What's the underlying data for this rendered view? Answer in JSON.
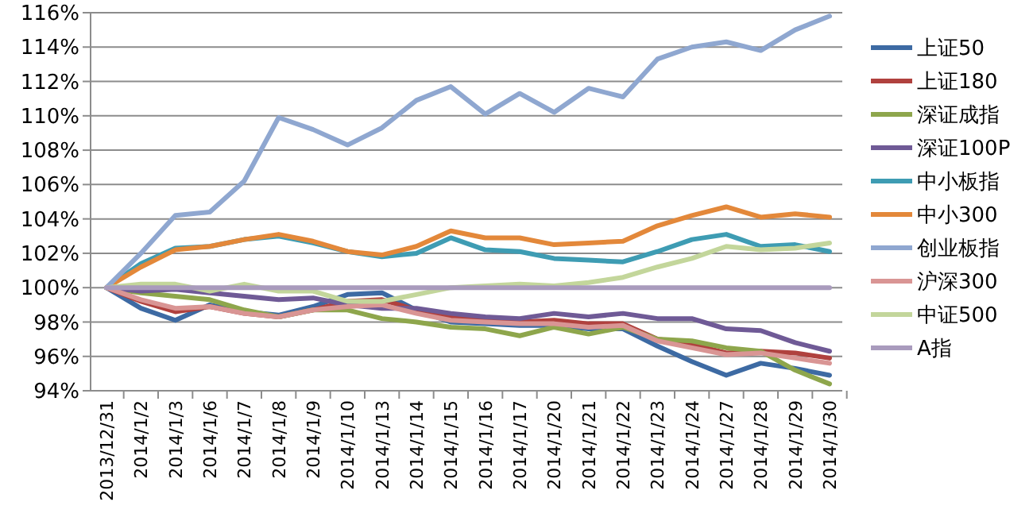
{
  "chart_data": {
    "type": "line",
    "categories": [
      "2013/12/31",
      "2014/1/2",
      "2014/1/3",
      "2014/1/6",
      "2014/1/7",
      "2014/1/8",
      "2014/1/9",
      "2014/1/10",
      "2014/1/13",
      "2014/1/14",
      "2014/1/15",
      "2014/1/16",
      "2014/1/17",
      "2014/1/20",
      "2014/1/21",
      "2014/1/22",
      "2014/1/23",
      "2014/1/24",
      "2014/1/27",
      "2014/1/28",
      "2014/1/29",
      "2014/1/30"
    ],
    "ylim": [
      94,
      116
    ],
    "yticks": [
      {
        "value": 94,
        "label": "94%"
      },
      {
        "value": 96,
        "label": "96%"
      },
      {
        "value": 98,
        "label": "98%"
      },
      {
        "value": 100,
        "label": "100%"
      },
      {
        "value": 102,
        "label": "102%"
      },
      {
        "value": 104,
        "label": "104%"
      },
      {
        "value": 106,
        "label": "106%"
      },
      {
        "value": 108,
        "label": "108%"
      },
      {
        "value": 110,
        "label": "110%"
      },
      {
        "value": 112,
        "label": "112%"
      },
      {
        "value": 114,
        "label": "114%"
      },
      {
        "value": 116,
        "label": "116%"
      }
    ],
    "grid": "y",
    "legend": "right",
    "marker": "none",
    "line_style": "solid",
    "series": [
      {
        "name": "上证50",
        "color": "#3d6aa3",
        "values": [
          100,
          98.8,
          98.1,
          99.0,
          98.6,
          98.4,
          98.9,
          99.6,
          99.7,
          98.7,
          98.0,
          97.9,
          97.8,
          97.8,
          97.6,
          97.6,
          96.6,
          95.7,
          94.9,
          95.6,
          95.3,
          94.9
        ]
      },
      {
        "name": "上证180",
        "color": "#b0413e",
        "values": [
          100,
          99.2,
          98.6,
          98.9,
          98.5,
          98.3,
          98.7,
          99.2,
          99.3,
          98.7,
          98.3,
          98.2,
          98.0,
          98.1,
          97.9,
          97.9,
          97.0,
          96.7,
          96.2,
          96.3,
          96.2,
          95.9
        ]
      },
      {
        "name": "深证成指",
        "color": "#8ea64c",
        "values": [
          100,
          99.7,
          99.5,
          99.3,
          98.7,
          98.3,
          98.7,
          98.7,
          98.2,
          98.0,
          97.7,
          97.6,
          97.2,
          97.7,
          97.3,
          97.7,
          97.0,
          96.9,
          96.5,
          96.3,
          95.2,
          94.4
        ]
      },
      {
        "name": "深证100P",
        "color": "#6f5a96",
        "values": [
          100,
          99.8,
          99.9,
          99.7,
          99.5,
          99.3,
          99.4,
          99.0,
          98.8,
          98.8,
          98.5,
          98.3,
          98.2,
          98.5,
          98.3,
          98.5,
          98.2,
          98.2,
          97.6,
          97.5,
          96.8,
          96.3
        ]
      },
      {
        "name": "中小板指",
        "color": "#3e9cb3",
        "values": [
          100,
          101.4,
          102.3,
          102.4,
          102.8,
          103.0,
          102.6,
          102.1,
          101.8,
          102.0,
          102.9,
          102.2,
          102.1,
          101.7,
          101.6,
          101.5,
          102.1,
          102.8,
          103.1,
          102.4,
          102.5,
          102.1
        ]
      },
      {
        "name": "中小300",
        "color": "#e3883a",
        "values": [
          100,
          101.2,
          102.2,
          102.4,
          102.8,
          103.1,
          102.7,
          102.1,
          101.9,
          102.4,
          103.3,
          102.9,
          102.9,
          102.5,
          102.6,
          102.7,
          103.6,
          104.2,
          104.7,
          104.1,
          104.3,
          104.1
        ]
      },
      {
        "name": "创业板指",
        "color": "#8fa7d0",
        "values": [
          100,
          102.0,
          104.2,
          104.4,
          106.2,
          109.9,
          109.2,
          108.3,
          109.3,
          110.9,
          111.7,
          110.1,
          111.3,
          110.2,
          111.6,
          111.1,
          113.3,
          114.0,
          114.3,
          113.8,
          115.0,
          115.8
        ]
      },
      {
        "name": "沪深300",
        "color": "#d99594",
        "values": [
          100,
          99.3,
          98.8,
          98.9,
          98.5,
          98.3,
          98.7,
          98.9,
          99.0,
          98.5,
          98.1,
          98.0,
          97.9,
          97.9,
          97.7,
          97.8,
          96.9,
          96.5,
          96.1,
          96.2,
          95.9,
          95.6
        ]
      },
      {
        "name": "中证500",
        "color": "#c3d69b",
        "values": [
          100,
          100.2,
          100.2,
          99.8,
          100.2,
          99.8,
          99.8,
          99.2,
          99.2,
          99.6,
          100.0,
          100.1,
          100.2,
          100.1,
          100.3,
          100.6,
          101.2,
          101.7,
          102.4,
          102.2,
          102.3,
          102.6
        ]
      },
      {
        "name": "A指",
        "color": "#a99bbd",
        "values": [
          100,
          100,
          100,
          100,
          100,
          100,
          100,
          100,
          100,
          100,
          100,
          100,
          100,
          100,
          100,
          100,
          100,
          100,
          100,
          100,
          100,
          100
        ]
      }
    ]
  }
}
